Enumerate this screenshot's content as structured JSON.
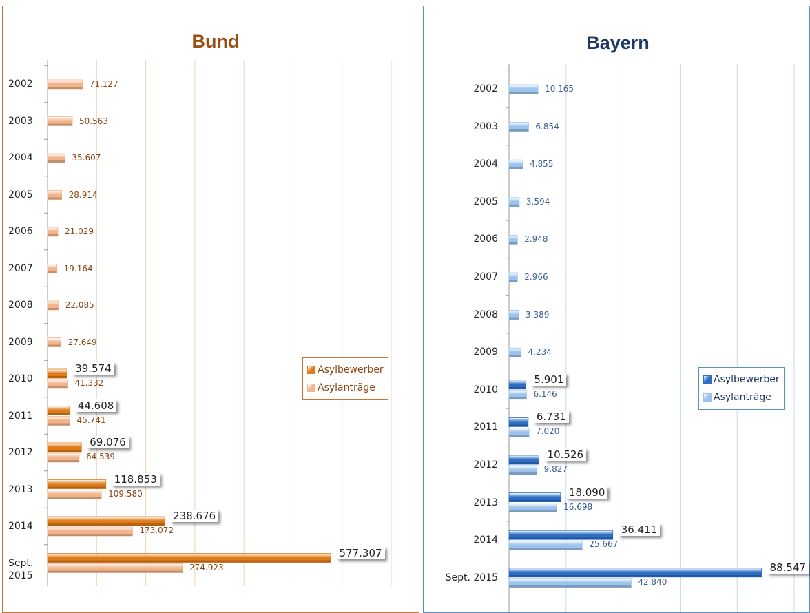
{
  "chart_data": [
    {
      "type": "bar",
      "orientation": "horizontal",
      "title": "Bund",
      "categories": [
        "2002",
        "2003",
        "2004",
        "2005",
        "2006",
        "2007",
        "2008",
        "2009",
        "2010",
        "2011",
        "2012",
        "2013",
        "2014",
        "Sept. 2015"
      ],
      "series": [
        {
          "name": "Asylbewerber",
          "color": "#e07b1a",
          "values": [
            null,
            null,
            null,
            null,
            null,
            null,
            null,
            null,
            39574,
            44608,
            69076,
            118853,
            238676,
            577307
          ],
          "value_labels": [
            null,
            null,
            null,
            null,
            null,
            null,
            null,
            null,
            "39.574",
            "44.608",
            "69.076",
            "118.853",
            "238.676",
            "577.307"
          ]
        },
        {
          "name": "Asylanträge",
          "color": "#f2b48a",
          "values": [
            71127,
            50563,
            35607,
            28914,
            21029,
            19164,
            22085,
            27649,
            41332,
            45741,
            64539,
            109580,
            173072,
            274923
          ],
          "value_labels": [
            "71.127",
            "50.563",
            "35.607",
            "28.914",
            "21.029",
            "19.164",
            "22.085",
            "27.649",
            "41.332",
            "45.741",
            "64.539",
            "109.580",
            "173.072",
            "274.923"
          ]
        }
      ],
      "xlim": [
        0,
        700000
      ],
      "xticks": [
        0,
        100000,
        200000,
        300000,
        400000,
        500000,
        600000,
        700000
      ],
      "grid": true,
      "legend": "right"
    },
    {
      "type": "bar",
      "orientation": "horizontal",
      "title": "Bayern",
      "categories": [
        "2002",
        "2003",
        "2004",
        "2005",
        "2006",
        "2007",
        "2008",
        "2009",
        "2010",
        "2011",
        "2012",
        "2013",
        "2014",
        "Sept. 2015"
      ],
      "series": [
        {
          "name": "Asylbewerber",
          "color": "#2e6fc6",
          "values": [
            null,
            null,
            null,
            null,
            null,
            null,
            null,
            null,
            5901,
            6731,
            10526,
            18090,
            36411,
            88547
          ],
          "value_labels": [
            null,
            null,
            null,
            null,
            null,
            null,
            null,
            null,
            "5.901",
            "6.731",
            "10.526",
            "18.090",
            "36.411",
            "88.547"
          ]
        },
        {
          "name": "Asylanträge",
          "color": "#9cc3ec",
          "values": [
            10165,
            6854,
            4855,
            3594,
            2948,
            2966,
            3389,
            4234,
            6146,
            7020,
            9827,
            16698,
            25667,
            42840
          ],
          "value_labels": [
            "10.165",
            "6.854",
            "4.855",
            "3.594",
            "2.948",
            "2.966",
            "3.389",
            "4.234",
            "6.146",
            "7.020",
            "9.827",
            "16.698",
            "25.667",
            "42.840"
          ]
        }
      ],
      "xlim": [
        0,
        100000
      ],
      "xticks": [
        0,
        20000,
        40000,
        60000,
        80000,
        100000
      ],
      "grid": true,
      "legend": "right"
    }
  ]
}
